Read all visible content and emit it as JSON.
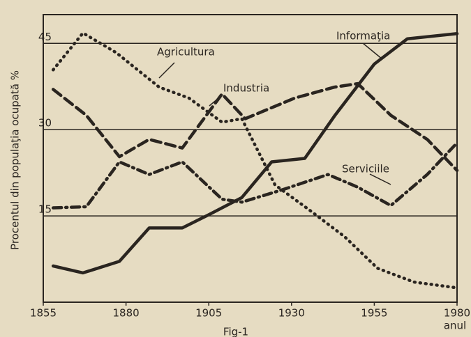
{
  "chart_data": {
    "type": "line",
    "xlabel": "anul",
    "ylabel": "Procentul din populaţia ocupată %",
    "caption": "Fig-1",
    "xlim": [
      1855,
      1980
    ],
    "xticks": [
      1855,
      1880,
      1905,
      1930,
      1955,
      1980
    ],
    "ylim": [
      0,
      50
    ],
    "yticks": [
      15,
      30,
      45
    ],
    "grid": true,
    "series": [
      {
        "name": "Informaţia",
        "color": "#2a2520",
        "style": "solid",
        "x": [
          1858,
          1867,
          1878,
          1887,
          1897,
          1905,
          1915,
          1924,
          1934,
          1943,
          1955,
          1965,
          1980
        ],
        "values": [
          6.3,
          5.1,
          7.1,
          12.9,
          12.9,
          15.2,
          18.2,
          24.4,
          25,
          32.4,
          41.4,
          45.8,
          46.7
        ]
      },
      {
        "name": "Agricultura",
        "color": "#2a2520",
        "style": "dotted",
        "x": [
          1858,
          1867,
          1877,
          1890,
          1899,
          1909,
          1915,
          1925,
          1935,
          1946,
          1956,
          1967,
          1980
        ],
        "values": [
          40.4,
          46.8,
          43.4,
          37.4,
          35.5,
          31.3,
          31.9,
          20.4,
          16.2,
          11.4,
          5.9,
          3.5,
          2.5
        ]
      },
      {
        "name": "Industria",
        "color": "#2a2520",
        "style": "dashed",
        "x": [
          1858,
          1868,
          1878,
          1887,
          1897,
          1909,
          1916,
          1931,
          1943,
          1950,
          1960,
          1971,
          1980
        ],
        "values": [
          37,
          32.5,
          25.3,
          28.3,
          26.8,
          36.2,
          31.9,
          35.5,
          37.4,
          38,
          32.5,
          28.3,
          22.9
        ]
      },
      {
        "name": "Serviciile",
        "color": "#2a2520",
        "style": "dashdot",
        "x": [
          1858,
          1868,
          1878,
          1887,
          1897,
          1909,
          1915,
          1927,
          1941,
          1950,
          1960,
          1971,
          1980
        ],
        "values": [
          16.4,
          16.6,
          24.4,
          22.2,
          24.4,
          17.9,
          17.4,
          19.5,
          22.2,
          20,
          16.8,
          22.2,
          27.7
        ]
      }
    ]
  }
}
